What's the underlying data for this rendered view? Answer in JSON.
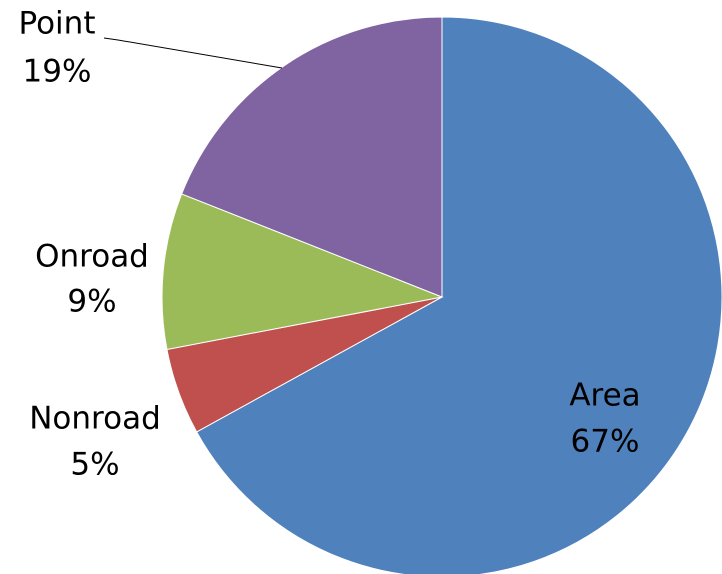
{
  "chart_data": {
    "type": "pie",
    "categories": [
      "Area",
      "Nonroad",
      "Onroad",
      "Point"
    ],
    "values": [
      67,
      5,
      9,
      19
    ],
    "value_labels": [
      "67%",
      "5%",
      "9%",
      "19%"
    ],
    "colors": [
      "#4f81bd",
      "#c0504d",
      "#9bbb59",
      "#8064a2"
    ]
  }
}
